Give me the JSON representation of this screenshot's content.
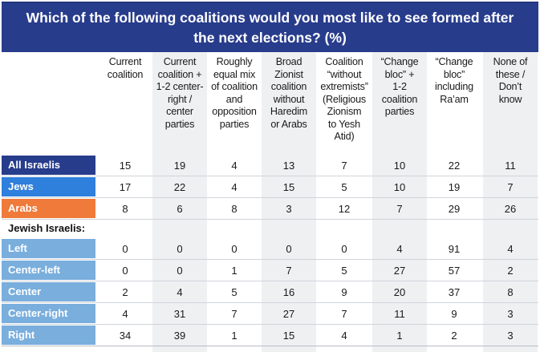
{
  "title_lines": [
    "Which of the following coalitions would you most like to see formed after",
    "the next elections? (%)"
  ],
  "chart_data": {
    "type": "table",
    "title": "Which of the following coalitions would you most like to see formed after the next elections? (%)",
    "columns": [
      [
        "Current",
        "coalition"
      ],
      [
        "Current",
        "coalition +",
        "1-2 center-",
        "right /",
        "center",
        "parties"
      ],
      [
        "Roughly",
        "equal mix",
        "of coalition",
        "and",
        "opposition",
        "parties"
      ],
      [
        "Broad",
        "Zionist",
        "coalition",
        "without",
        "Haredim",
        "or Arabs"
      ],
      [
        "Coalition",
        "“without",
        "extremists”",
        "(Religious",
        "Zionism",
        "to Yesh",
        "Atid)"
      ],
      [
        "“Change",
        "bloc” +",
        "1-2",
        "coalition",
        "parties"
      ],
      [
        "“Change",
        "bloc”",
        "including",
        "Ra’am"
      ],
      [
        "None of",
        "these /",
        "Don’t",
        "know"
      ]
    ],
    "groups": [
      {
        "label": "",
        "rows": [
          {
            "label": "All Israelis",
            "color": "#283c8c",
            "values": [
              "15",
              "19",
              "4",
              "13",
              "7",
              "10",
              "22",
              "11"
            ]
          },
          {
            "label": "Jews",
            "color": "#2f7fdc",
            "values": [
              "17",
              "22",
              "4",
              "15",
              "5",
              "10",
              "19",
              "7"
            ]
          },
          {
            "label": "Arabs",
            "color": "#f07a3a",
            "values": [
              "8",
              "6",
              "8",
              "3",
              "12",
              "7",
              "29",
              "26"
            ]
          }
        ]
      },
      {
        "label": "Jewish Israelis:",
        "rows": [
          {
            "label": "Left",
            "color": "#79aedd",
            "values": [
              "0",
              "0",
              "0",
              "0",
              "0",
              "4",
              "91",
              "4"
            ]
          },
          {
            "label": "Center-left",
            "color": "#79aedd",
            "values": [
              "0",
              "0",
              "1",
              "7",
              "5",
              "27",
              "57",
              "2"
            ]
          },
          {
            "label": "Center",
            "color": "#79aedd",
            "values": [
              "2",
              "4",
              "5",
              "16",
              "9",
              "20",
              "37",
              "8"
            ]
          },
          {
            "label": "Center-right",
            "color": "#79aedd",
            "values": [
              "4",
              "31",
              "7",
              "27",
              "7",
              "11",
              "9",
              "3"
            ]
          },
          {
            "label": "Right",
            "color": "#79aedd",
            "values": [
              "34",
              "39",
              "1",
              "15",
              "4",
              "1",
              "2",
              "3"
            ]
          }
        ]
      }
    ]
  }
}
